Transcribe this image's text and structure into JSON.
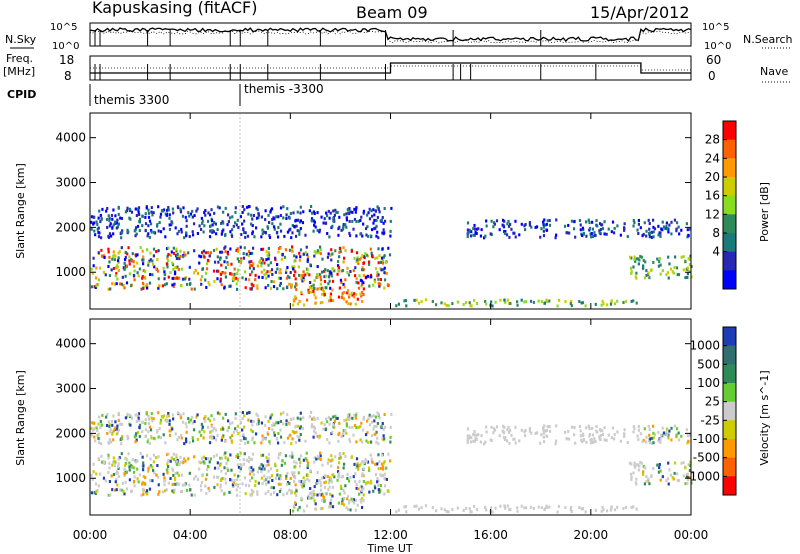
{
  "header": {
    "station": "Kapuskasing (fitACF)",
    "beam": "Beam 09",
    "date": "15/Apr/2012"
  },
  "top_panels": {
    "nsky_label": "N.Sky",
    "nsky_ticks": [
      "10^5",
      "10^0"
    ],
    "nsearch_label": "N.Search",
    "nsearch_ticks": [
      "10^5",
      "10^0"
    ],
    "freq_label_1": "Freq.",
    "freq_label_2": "[MHz]",
    "freq_ticks": [
      "18",
      "8"
    ],
    "nave_label": "Nave",
    "nave_ticks": [
      "60",
      "0"
    ],
    "cpid_label": "CPID",
    "cpid_entries": [
      {
        "text": "themis 3300",
        "start_hour": 0.0
      },
      {
        "text": "themis -3300",
        "start_hour": 6.0
      }
    ]
  },
  "chart_data": [
    {
      "type": "heatmap",
      "name": "power",
      "ylabel": "Slant Range [km]",
      "xlabel": "Time UT",
      "xlim_hours": [
        0,
        24
      ],
      "ylim": [
        180,
        4550
      ],
      "y_ticks": [
        "1000",
        "2000",
        "3000",
        "4000"
      ],
      "colorbar_label": "Power [dB]",
      "colorbar_ticks": [
        "28",
        "24",
        "20",
        "16",
        "12",
        "8",
        "4"
      ],
      "colorbar_colors": [
        "#ff0000",
        "#ff6000",
        "#ff9900",
        "#cccc00",
        "#88dd22",
        "#2e8b57",
        "#1a7a7a",
        "#2828b4",
        "#0000ff"
      ],
      "regions": [
        {
          "t": [
            0.0,
            12.0
          ],
          "r": [
            650,
            1600
          ],
          "level": "mixed"
        },
        {
          "t": [
            0.0,
            12.0
          ],
          "r": [
            1800,
            2500
          ],
          "level": "low"
        },
        {
          "t": [
            8.0,
            11.0
          ],
          "r": [
            300,
            700
          ],
          "level": "high"
        },
        {
          "t": [
            12.0,
            22.0
          ],
          "r": [
            280,
            420
          ],
          "level": "mid"
        },
        {
          "t": [
            15.0,
            24.0
          ],
          "r": [
            1800,
            2200
          ],
          "level": "low"
        },
        {
          "t": [
            21.5,
            24.0
          ],
          "r": [
            900,
            1400
          ],
          "level": "mid"
        }
      ]
    },
    {
      "type": "heatmap",
      "name": "velocity",
      "ylabel": "Slant Range [km]",
      "xlabel": "Time UT",
      "xlim_hours": [
        0,
        24
      ],
      "ylim": [
        180,
        4550
      ],
      "y_ticks": [
        "1000",
        "2000",
        "3000",
        "4000"
      ],
      "colorbar_label": "Velocity [m s^-1]",
      "colorbar_ticks": [
        "1000",
        "500",
        "100",
        "25",
        "-25",
        "-100",
        "-500",
        "-1000"
      ],
      "colorbar_colors": [
        "#1e3cb4",
        "#2f6f6f",
        "#2e8b57",
        "#66cc33",
        "#cccccc",
        "#cccc00",
        "#ff9900",
        "#ff6000",
        "#ff0000"
      ],
      "x_ticks": [
        "00:00",
        "04:00",
        "08:00",
        "12:00",
        "16:00",
        "20:00",
        "00:00"
      ]
    }
  ]
}
